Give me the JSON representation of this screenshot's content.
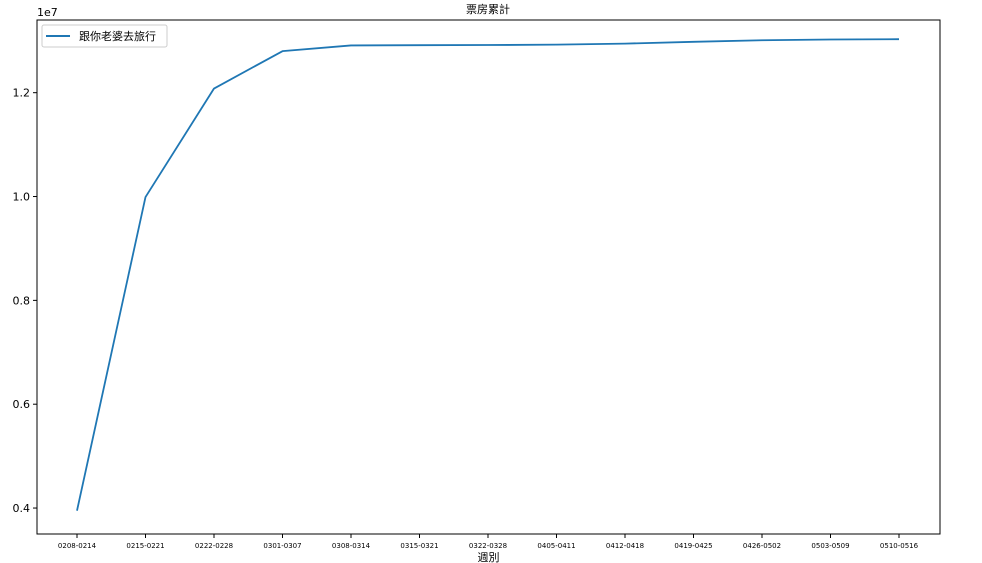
{
  "chart_data": {
    "type": "line",
    "title": "票房累計",
    "xlabel": "週別",
    "ylabel": "",
    "y_offset_label": "1e7",
    "categories": [
      "0208-0214",
      "0215-0221",
      "0222-0228",
      "0301-0307",
      "0308-0314",
      "0315-0321",
      "0322-0328",
      "0405-0411",
      "0412-0418",
      "0419-0425",
      "0426-0502",
      "0503-0509",
      "0510-0516"
    ],
    "series": [
      {
        "name": "跟你老婆去旅行",
        "values": [
          3950000,
          9990000,
          12080000,
          12800000,
          12910000,
          12915000,
          12918000,
          12925000,
          12945000,
          12980000,
          13010000,
          13025000,
          13030000
        ]
      }
    ],
    "yticks": [
      4000000,
      6000000,
      8000000,
      10000000,
      12000000
    ],
    "ytick_labels": [
      "0.4",
      "0.6",
      "0.8",
      "1.0",
      "1.2"
    ],
    "ylim": [
      3500000,
      13400000
    ],
    "grid": false,
    "legend_position": "upper-left",
    "colors": {
      "line": "#1f77b4",
      "axis": "#000000",
      "legend_border": "#cccccc"
    }
  }
}
